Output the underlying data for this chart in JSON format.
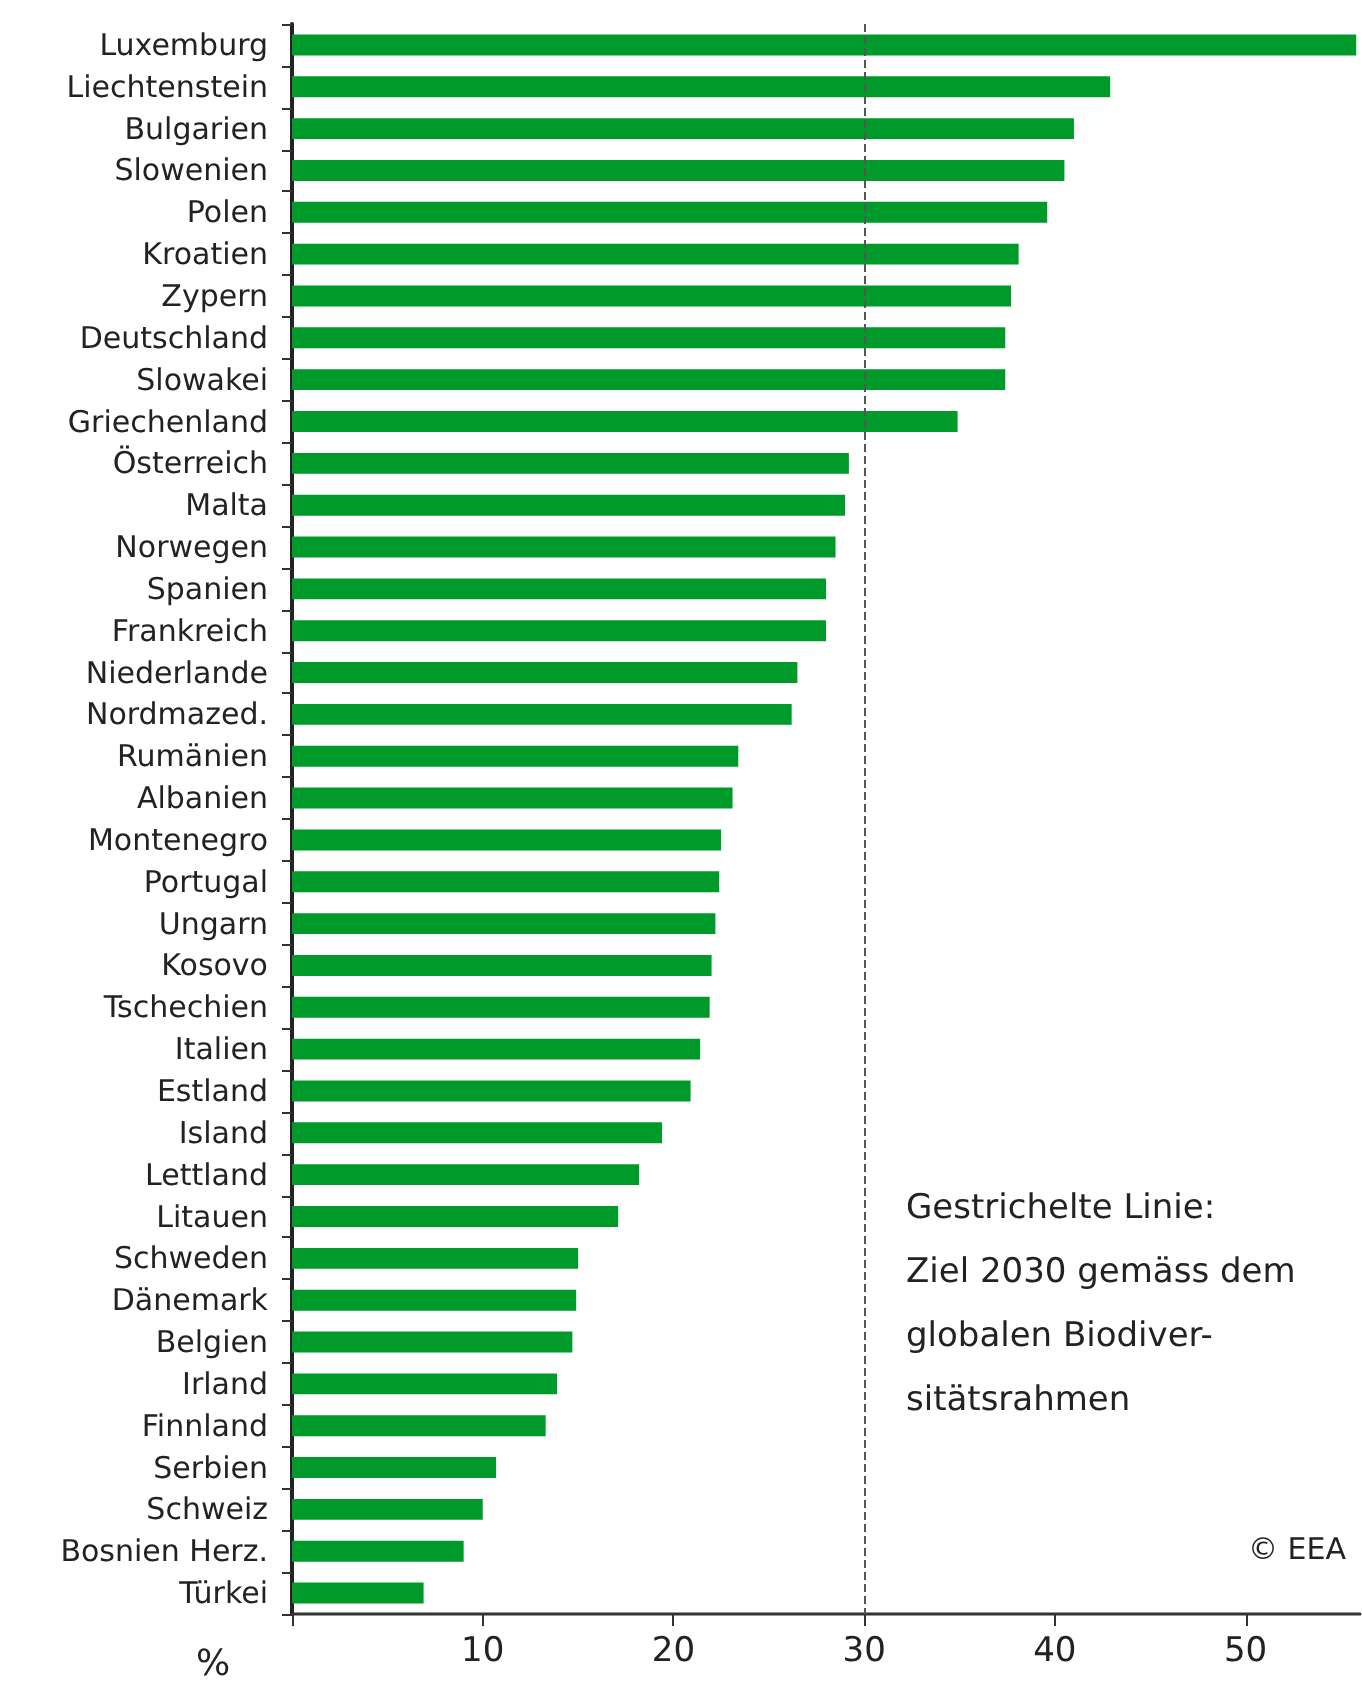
{
  "chart_data": {
    "type": "bar",
    "orientation": "horizontal",
    "categories": [
      "Luxemburg",
      "Liechtenstein",
      "Bulgarien",
      "Slowenien",
      "Polen",
      "Kroatien",
      "Zypern",
      "Deutschland",
      "Slowakei",
      "Griechenland",
      "Österreich",
      "Malta",
      "Norwegen",
      "Spanien",
      "Frankreich",
      "Niederlande",
      "Nordmazed.",
      "Rumänien",
      "Albanien",
      "Montenegro",
      "Portugal",
      "Ungarn",
      "Kosovo",
      "Tschechien",
      "Italien",
      "Estland",
      "Island",
      "Lettland",
      "Litauen",
      "Schweden",
      "Dänemark",
      "Belgien",
      "Irland",
      "Finnland",
      "Serbien",
      "Schweiz",
      "Bosnien Herz.",
      "Türkei"
    ],
    "values": [
      55.8,
      42.9,
      41.0,
      40.5,
      39.6,
      38.1,
      37.7,
      37.4,
      37.4,
      34.9,
      29.2,
      29.0,
      28.5,
      28.0,
      28.0,
      26.5,
      26.2,
      23.4,
      23.1,
      22.5,
      22.4,
      22.2,
      22.0,
      21.9,
      21.4,
      20.9,
      19.4,
      18.2,
      17.1,
      15.0,
      14.9,
      14.7,
      13.9,
      13.3,
      10.7,
      10.0,
      9.0,
      6.9
    ],
    "color": "#009a2b",
    "xlabel": "%",
    "xlim": [
      0,
      56
    ],
    "xticks": [
      {
        "value": 0,
        "label": null
      },
      10,
      20,
      30,
      40,
      50
    ],
    "ref_lines": [
      {
        "axis": "x",
        "value": 30,
        "line_style": "dashed",
        "color": "#555555"
      }
    ],
    "annotations": [
      "Gestrichelte Linie:\nZiel 2030 gemäss dem\nglobalen Biodiver-\nsitätsrahmen",
      "© EEA"
    ]
  }
}
